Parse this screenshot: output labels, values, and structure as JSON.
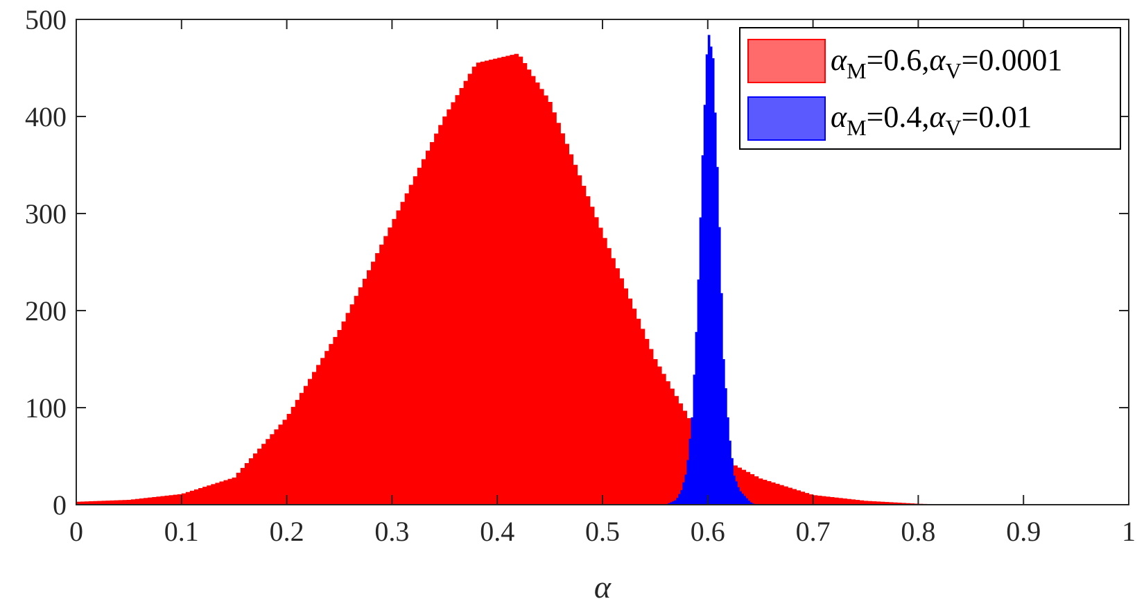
{
  "chart_data": {
    "type": "histogram",
    "title": "",
    "xlabel": "α",
    "ylabel": "",
    "xlim": [
      0,
      1
    ],
    "ylim": [
      0,
      500
    ],
    "xticks": [
      "0",
      "0.1",
      "0.2",
      "0.3",
      "0.4",
      "0.5",
      "0.6",
      "0.7",
      "0.8",
      "0.9",
      "1"
    ],
    "yticks": [
      "0",
      "100",
      "200",
      "300",
      "400",
      "500"
    ],
    "grid": false,
    "legend_position": "top-right",
    "series": [
      {
        "name": "α_M=0.6,α_V=0.0001",
        "legend_parts": {
          "sym1": "α",
          "sub1": "M",
          "mid": "=0.6,",
          "sym2": "α",
          "sub2": "V",
          "tail": "=0.0001"
        },
        "color": "#ff0000",
        "legend_swatch_color": "#ff6a6a",
        "x": [
          0.0,
          0.05,
          0.1,
          0.15,
          0.2,
          0.25,
          0.3,
          0.35,
          0.38,
          0.4,
          0.42,
          0.45,
          0.5,
          0.55,
          0.6,
          0.65,
          0.7,
          0.75,
          0.8,
          0.83
        ],
        "values": [
          3,
          5,
          11,
          28,
          90,
          180,
          290,
          400,
          455,
          460,
          465,
          415,
          280,
          150,
          55,
          27,
          10,
          4,
          1,
          0
        ]
      },
      {
        "name": "α_M=0.4,α_V=0.01",
        "legend_parts": {
          "sym1": "α",
          "sub1": "M",
          "mid": "=0.4,",
          "sym2": "α",
          "sub2": "V",
          "tail": "=0.01"
        },
        "color": "#0000ff",
        "legend_swatch_color": "#5a5aff",
        "x": [
          0.56,
          0.57,
          0.575,
          0.58,
          0.585,
          0.59,
          0.595,
          0.6,
          0.605,
          0.61,
          0.615,
          0.62,
          0.625,
          0.63,
          0.64,
          0.645
        ],
        "values": [
          0,
          5,
          15,
          35,
          90,
          200,
          360,
          490,
          460,
          320,
          150,
          75,
          30,
          15,
          3,
          0
        ]
      }
    ]
  }
}
